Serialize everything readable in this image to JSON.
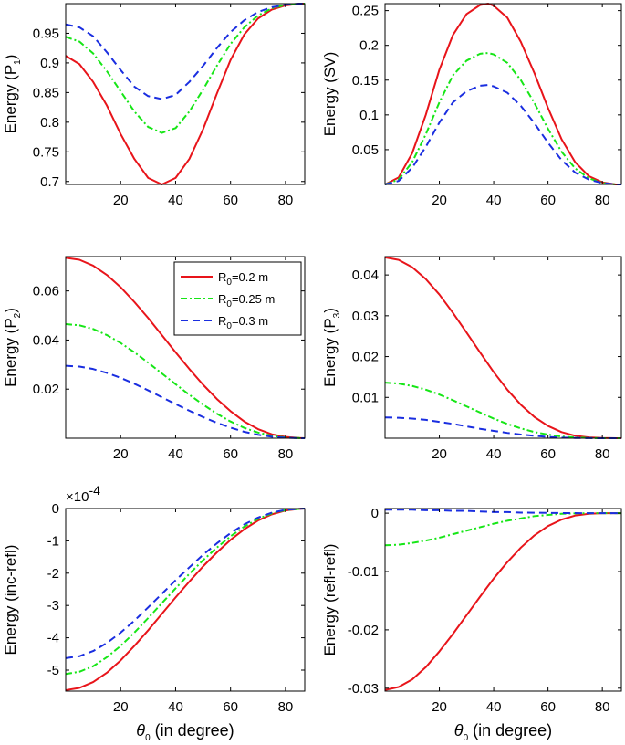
{
  "colors": {
    "series_0_2": "#e8141a",
    "series_0_25": "#16e616",
    "series_0_3": "#1a2ee0",
    "axes": "#000000"
  },
  "chart_data": [
    {
      "type": "line",
      "ylabel": "Energy (P",
      "ylabel_sub": "1",
      "ylabel_end": ")",
      "xlabel": "",
      "xlim": [
        0,
        87
      ],
      "ylim": [
        0.695,
        1.0
      ],
      "xticks": [
        20,
        40,
        60,
        80
      ],
      "yticks": [
        0.7,
        0.75,
        0.8,
        0.85,
        0.9,
        0.95
      ],
      "ytick_labels": [
        "0.7",
        "0.75",
        "0.8",
        "0.85",
        "0.9",
        "0.95"
      ],
      "series": [
        {
          "name": "R0=0.2 m",
          "x": [
            0,
            5,
            10,
            15,
            20,
            25,
            30,
            35,
            40,
            45,
            50,
            55,
            60,
            65,
            70,
            75,
            80,
            85,
            87
          ],
          "y": [
            0.912,
            0.898,
            0.868,
            0.828,
            0.78,
            0.738,
            0.706,
            0.695,
            0.706,
            0.738,
            0.788,
            0.848,
            0.905,
            0.948,
            0.975,
            0.99,
            0.997,
            1.0,
            1.0
          ]
        },
        {
          "name": "R0=0.25 m",
          "x": [
            0,
            5,
            10,
            15,
            20,
            25,
            30,
            35,
            40,
            45,
            50,
            55,
            60,
            65,
            70,
            75,
            80,
            85,
            87
          ],
          "y": [
            0.944,
            0.936,
            0.916,
            0.886,
            0.852,
            0.818,
            0.792,
            0.782,
            0.79,
            0.818,
            0.855,
            0.895,
            0.932,
            0.96,
            0.98,
            0.992,
            0.998,
            1.0,
            1.0
          ]
        },
        {
          "name": "R0=0.3 m",
          "x": [
            0,
            5,
            10,
            15,
            20,
            25,
            30,
            35,
            40,
            45,
            50,
            55,
            60,
            65,
            70,
            75,
            80,
            85,
            87
          ],
          "y": [
            0.965,
            0.96,
            0.945,
            0.918,
            0.888,
            0.86,
            0.844,
            0.839,
            0.846,
            0.868,
            0.895,
            0.925,
            0.952,
            0.972,
            0.986,
            0.994,
            0.998,
            1.0,
            1.0
          ]
        }
      ]
    },
    {
      "type": "line",
      "ylabel": "Energy (SV)",
      "ylabel_sub": "",
      "ylabel_end": "",
      "xlabel": "",
      "xlim": [
        0,
        87
      ],
      "ylim": [
        0,
        0.26
      ],
      "xticks": [
        20,
        40,
        60,
        80
      ],
      "yticks": [
        0.05,
        0.1,
        0.15,
        0.2,
        0.25
      ],
      "ytick_labels": [
        "0.05",
        "0.1",
        "0.15",
        "0.2",
        "0.25"
      ],
      "series": [
        {
          "name": "R0=0.2 m",
          "x": [
            0,
            5,
            10,
            15,
            20,
            25,
            30,
            35,
            38,
            40,
            45,
            50,
            55,
            60,
            65,
            70,
            75,
            80,
            85,
            87
          ],
          "y": [
            0,
            0.01,
            0.045,
            0.1,
            0.165,
            0.215,
            0.245,
            0.258,
            0.26,
            0.257,
            0.24,
            0.205,
            0.16,
            0.11,
            0.065,
            0.032,
            0.012,
            0.003,
            0,
            0
          ]
        },
        {
          "name": "R0=0.25 m",
          "x": [
            0,
            5,
            10,
            15,
            20,
            25,
            30,
            35,
            38,
            40,
            45,
            50,
            55,
            60,
            65,
            70,
            75,
            80,
            85,
            87
          ],
          "y": [
            0,
            0.007,
            0.032,
            0.072,
            0.118,
            0.157,
            0.178,
            0.188,
            0.189,
            0.187,
            0.175,
            0.15,
            0.117,
            0.08,
            0.047,
            0.023,
            0.009,
            0.002,
            0,
            0
          ]
        },
        {
          "name": "R0=0.3 m",
          "x": [
            0,
            5,
            10,
            15,
            20,
            25,
            30,
            35,
            38,
            40,
            45,
            50,
            55,
            60,
            65,
            70,
            75,
            80,
            85,
            87
          ],
          "y": [
            0,
            0.005,
            0.024,
            0.054,
            0.089,
            0.118,
            0.134,
            0.142,
            0.143,
            0.141,
            0.132,
            0.113,
            0.088,
            0.06,
            0.035,
            0.017,
            0.007,
            0.002,
            0,
            0
          ]
        }
      ]
    },
    {
      "type": "line",
      "ylabel": "Energy (P",
      "ylabel_sub": "2",
      "ylabel_end": ")",
      "xlabel": "",
      "xlim": [
        0,
        87
      ],
      "ylim": [
        0,
        0.074
      ],
      "xticks": [
        20,
        40,
        60,
        80
      ],
      "yticks": [
        0.02,
        0.04,
        0.06
      ],
      "ytick_labels": [
        "0.02",
        "0.04",
        "0.06"
      ],
      "legend": {
        "placement": "top-right",
        "entries": [
          {
            "label": "R",
            "sub": "0",
            "rest": "=0.2 m"
          },
          {
            "label": "R",
            "sub": "0",
            "rest": "=0.25 m"
          },
          {
            "label": "R",
            "sub": "0",
            "rest": "=0.3 m"
          }
        ]
      },
      "series": [
        {
          "name": "R0=0.2 m",
          "x": [
            0,
            5,
            10,
            15,
            20,
            25,
            30,
            35,
            40,
            45,
            50,
            55,
            60,
            65,
            70,
            75,
            80,
            85,
            87
          ],
          "y": [
            0.0735,
            0.0727,
            0.0703,
            0.0665,
            0.0615,
            0.0555,
            0.049,
            0.042,
            0.035,
            0.0282,
            0.0218,
            0.016,
            0.011,
            0.0068,
            0.0037,
            0.0016,
            0.0005,
            0.0001,
            0
          ]
        },
        {
          "name": "R0=0.25 m",
          "x": [
            0,
            5,
            10,
            15,
            20,
            25,
            30,
            35,
            40,
            45,
            50,
            55,
            60,
            65,
            70,
            75,
            80,
            85,
            87
          ],
          "y": [
            0.0465,
            0.046,
            0.0445,
            0.042,
            0.0388,
            0.035,
            0.0308,
            0.0264,
            0.022,
            0.0177,
            0.0137,
            0.01,
            0.0068,
            0.0042,
            0.0023,
            0.001,
            0.0003,
            5e-05,
            0
          ]
        },
        {
          "name": "R0=0.3 m",
          "x": [
            0,
            5,
            10,
            15,
            20,
            25,
            30,
            35,
            40,
            45,
            50,
            55,
            60,
            65,
            70,
            75,
            80,
            85,
            87
          ],
          "y": [
            0.0295,
            0.0292,
            0.0282,
            0.0266,
            0.0246,
            0.0222,
            0.0195,
            0.0167,
            0.0139,
            0.0112,
            0.0086,
            0.0063,
            0.0043,
            0.0026,
            0.0014,
            0.0006,
            0.0002,
            3e-05,
            0
          ]
        }
      ]
    },
    {
      "type": "line",
      "ylabel": "Energy (P",
      "ylabel_sub": "3",
      "ylabel_end": ")",
      "xlabel": "",
      "xlim": [
        0,
        87
      ],
      "ylim": [
        0,
        0.0445
      ],
      "xticks": [
        20,
        40,
        60,
        80
      ],
      "yticks": [
        0.01,
        0.02,
        0.03,
        0.04
      ],
      "ytick_labels": [
        "0.01",
        "0.02",
        "0.03",
        "0.04"
      ],
      "series": [
        {
          "name": "R0=0.2 m",
          "x": [
            0,
            5,
            10,
            15,
            20,
            25,
            30,
            35,
            40,
            45,
            50,
            55,
            60,
            65,
            70,
            75,
            80,
            85,
            87
          ],
          "y": [
            0.0443,
            0.0437,
            0.0419,
            0.039,
            0.0352,
            0.0307,
            0.0259,
            0.021,
            0.0162,
            0.0119,
            0.0082,
            0.0052,
            0.003,
            0.0015,
            0.0006,
            0.0002,
            5e-05,
            0,
            0
          ]
        },
        {
          "name": "R0=0.25 m",
          "x": [
            0,
            5,
            10,
            15,
            20,
            25,
            30,
            35,
            40,
            45,
            50,
            55,
            60,
            65,
            70,
            75,
            80,
            85,
            87
          ],
          "y": [
            0.0136,
            0.0134,
            0.0128,
            0.0119,
            0.0107,
            0.0093,
            0.0078,
            0.0063,
            0.0048,
            0.0035,
            0.0024,
            0.0015,
            0.0009,
            0.0004,
            0.0002,
            5e-05,
            1e-05,
            0,
            0
          ]
        },
        {
          "name": "R0=0.3 m",
          "x": [
            0,
            5,
            10,
            15,
            20,
            25,
            30,
            35,
            40,
            45,
            50,
            55,
            60,
            65,
            70,
            75,
            80,
            85,
            87
          ],
          "y": [
            0.0051,
            0.005,
            0.0048,
            0.0045,
            0.004,
            0.0035,
            0.0029,
            0.0023,
            0.0018,
            0.0013,
            0.0009,
            0.0006,
            0.0003,
            0.00015,
            6e-05,
            2e-05,
            0,
            0,
            0
          ]
        }
      ]
    },
    {
      "type": "line",
      "ylabel": "Energy (inc-refl)",
      "ylabel_sub": "",
      "ylabel_end": "",
      "xlabel": "θ",
      "xlabel_sub": "0",
      "xlabel_end": " (in degree)",
      "exponent_label": "×10",
      "exponent_power": "-4",
      "xlim": [
        0,
        87
      ],
      "ylim": [
        -5.65,
        0
      ],
      "xticks": [
        20,
        40,
        60,
        80
      ],
      "yticks": [
        -5,
        -4,
        -3,
        -2,
        -1,
        0
      ],
      "ytick_labels": [
        "-5",
        "-4",
        "-3",
        "-2",
        "-1",
        "0"
      ],
      "series": [
        {
          "name": "R0=0.2 m",
          "x": [
            0,
            5,
            10,
            15,
            20,
            25,
            30,
            35,
            40,
            45,
            50,
            55,
            60,
            65,
            70,
            75,
            80,
            85,
            87
          ],
          "y": [
            -5.62,
            -5.55,
            -5.37,
            -5.08,
            -4.7,
            -4.25,
            -3.77,
            -3.26,
            -2.75,
            -2.26,
            -1.79,
            -1.36,
            -0.97,
            -0.64,
            -0.37,
            -0.18,
            -0.06,
            -0.01,
            0
          ]
        },
        {
          "name": "R0=0.25 m",
          "x": [
            0,
            5,
            10,
            15,
            20,
            25,
            30,
            35,
            40,
            45,
            50,
            55,
            60,
            65,
            70,
            75,
            80,
            85,
            87
          ],
          "y": [
            -5.12,
            -5.05,
            -4.88,
            -4.6,
            -4.25,
            -3.84,
            -3.39,
            -2.93,
            -2.47,
            -2.02,
            -1.6,
            -1.21,
            -0.86,
            -0.56,
            -0.32,
            -0.15,
            -0.05,
            -0.01,
            0
          ]
        },
        {
          "name": "R0=0.3 m",
          "x": [
            0,
            5,
            10,
            15,
            20,
            25,
            30,
            35,
            40,
            45,
            50,
            55,
            60,
            65,
            70,
            75,
            80,
            85,
            87
          ],
          "y": [
            -4.63,
            -4.57,
            -4.41,
            -4.16,
            -3.84,
            -3.47,
            -3.06,
            -2.64,
            -2.22,
            -1.82,
            -1.43,
            -1.08,
            -0.76,
            -0.49,
            -0.28,
            -0.13,
            -0.04,
            -0.01,
            0
          ]
        }
      ]
    },
    {
      "type": "line",
      "ylabel": "Energy (refl-refl)",
      "ylabel_sub": "",
      "ylabel_end": "",
      "xlabel": "θ",
      "xlabel_sub": "0",
      "xlabel_end": " (in degree)",
      "xlim": [
        0,
        87
      ],
      "ylim": [
        -0.0305,
        0.0008
      ],
      "xticks": [
        20,
        40,
        60,
        80
      ],
      "yticks": [
        -0.03,
        -0.02,
        -0.01,
        0
      ],
      "ytick_labels": [
        "-0.03",
        "-0.02",
        "-0.01",
        "0"
      ],
      "series": [
        {
          "name": "R0=0.2 m",
          "x": [
            0,
            5,
            10,
            15,
            20,
            25,
            30,
            35,
            40,
            45,
            50,
            55,
            60,
            65,
            70,
            75,
            80,
            85,
            87
          ],
          "y": [
            -0.0303,
            -0.0298,
            -0.0285,
            -0.0264,
            -0.0237,
            -0.0207,
            -0.0175,
            -0.0143,
            -0.0112,
            -0.0084,
            -0.0059,
            -0.0038,
            -0.0022,
            -0.0011,
            -0.0004,
            -0.0001,
            0,
            0,
            0
          ]
        },
        {
          "name": "R0=0.25 m",
          "x": [
            0,
            5,
            10,
            15,
            20,
            25,
            30,
            35,
            40,
            45,
            50,
            55,
            60,
            65,
            70,
            75,
            80,
            85,
            87
          ],
          "y": [
            -0.0055,
            -0.0054,
            -0.0051,
            -0.0047,
            -0.0042,
            -0.0036,
            -0.003,
            -0.0024,
            -0.0018,
            -0.0013,
            -0.0009,
            -0.0005,
            -0.0003,
            -0.0001,
            -4e-05,
            0,
            0,
            0,
            0
          ]
        },
        {
          "name": "R0=0.3 m",
          "x": [
            0,
            5,
            10,
            15,
            20,
            25,
            30,
            35,
            40,
            45,
            50,
            55,
            60,
            65,
            70,
            75,
            80,
            85,
            87
          ],
          "y": [
            0.0006,
            0.0006,
            0.0006,
            0.0005,
            0.0005,
            0.0004,
            0.0004,
            0.0003,
            0.0002,
            0.0002,
            0.0001,
            8e-05,
            5e-05,
            2e-05,
            1e-05,
            0,
            0,
            0,
            0
          ]
        }
      ]
    }
  ]
}
